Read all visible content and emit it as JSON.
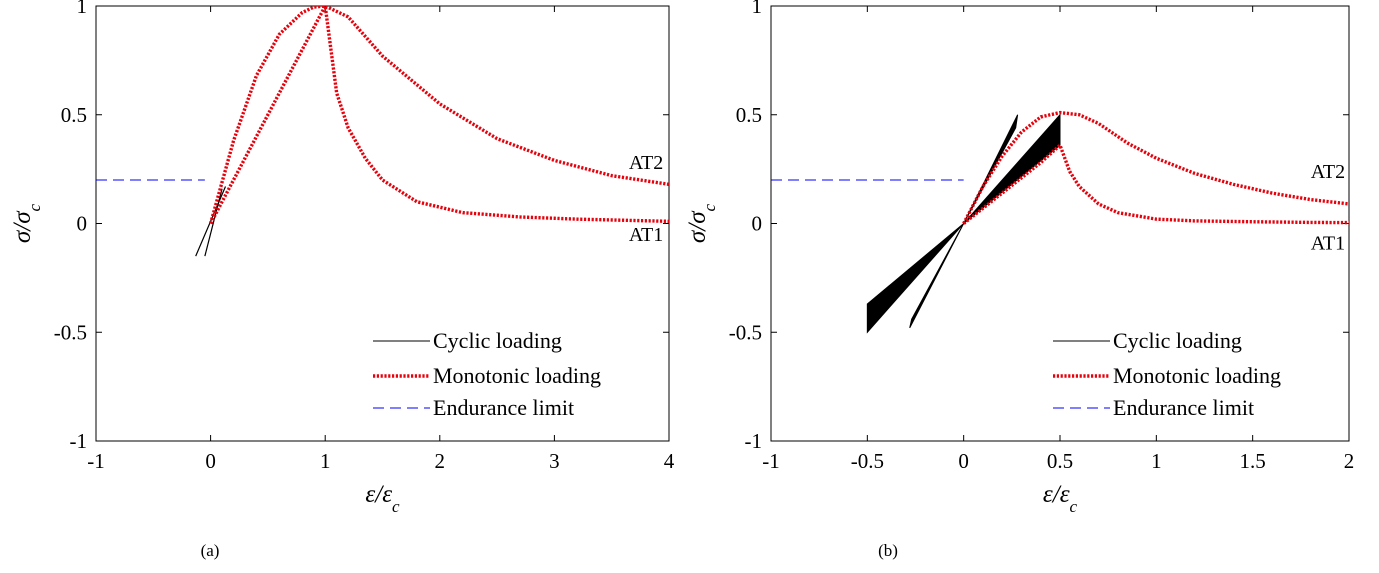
{
  "chart_data": [
    {
      "type": "line",
      "caption": "(a)",
      "xlabel": "ε/ε",
      "xlabel_sub": "c",
      "ylabel": "σ/σ",
      "ylabel_sub": "c",
      "xlim": [
        -1,
        4
      ],
      "ylim": [
        -1,
        1
      ],
      "xticks": [
        -1,
        0,
        1,
        2,
        3,
        4
      ],
      "xtick_labels": [
        "-1",
        "0",
        "1",
        "2",
        "3",
        "4"
      ],
      "yticks": [
        -1,
        -0.5,
        0,
        0.5,
        1
      ],
      "ytick_labels": [
        "-1",
        "-0.5",
        "0",
        "0.5",
        "1"
      ],
      "grid": false,
      "legend_position": "bottom-right",
      "series": [
        {
          "name": "Cyclic loading",
          "style": "solid",
          "color": "#000000",
          "segments": [
            {
              "x": [
                -0.13,
                0.13
              ],
              "y": [
                -0.15,
                0.17
              ]
            },
            {
              "x": [
                -0.05,
                0.1
              ],
              "y": [
                -0.15,
                0.16
              ]
            }
          ]
        },
        {
          "name": "Monotonic loading",
          "style": "dotted",
          "color": "#e8000b",
          "segments": [
            {
              "label": "AT2",
              "x": [
                0,
                0.2,
                0.4,
                0.6,
                0.8,
                0.9,
                1.0,
                1.2,
                1.5,
                2.0,
                2.5,
                3.0,
                3.5,
                4.0
              ],
              "y": [
                0,
                0.38,
                0.68,
                0.87,
                0.97,
                0.995,
                1.0,
                0.95,
                0.77,
                0.55,
                0.39,
                0.29,
                0.22,
                0.18
              ]
            },
            {
              "label": "AT1",
              "x": [
                0,
                0.2,
                0.4,
                0.6,
                0.8,
                1.0,
                1.1,
                1.2,
                1.35,
                1.5,
                1.8,
                2.2,
                2.7,
                3.2,
                4.0
              ],
              "y": [
                0,
                0.2,
                0.4,
                0.6,
                0.8,
                1.0,
                0.6,
                0.44,
                0.3,
                0.2,
                0.1,
                0.05,
                0.03,
                0.02,
                0.01
              ]
            }
          ]
        },
        {
          "name": "Endurance limit",
          "style": "dashed",
          "color": "#0000ff",
          "segments": [
            {
              "x": [
                -1,
                -0.05
              ],
              "y": [
                0.2,
                0.2
              ]
            }
          ]
        }
      ],
      "annotations": [
        {
          "text": "AT2",
          "x": 3.95,
          "y": 0.25
        },
        {
          "text": "AT1",
          "x": 3.95,
          "y": -0.08
        }
      ]
    },
    {
      "type": "line",
      "caption": "(b)",
      "xlabel": "ε/ε",
      "xlabel_sub": "c",
      "ylabel": "σ/σ",
      "ylabel_sub": "c",
      "xlim": [
        -1,
        2
      ],
      "ylim": [
        -1,
        1
      ],
      "xticks": [
        -1,
        -0.5,
        0,
        0.5,
        1,
        1.5,
        2
      ],
      "xtick_labels": [
        "-1",
        "-0.5",
        "0",
        "0.5",
        "1",
        "1.5",
        "2"
      ],
      "yticks": [
        -1,
        -0.5,
        0,
        0.5,
        1
      ],
      "ytick_labels": [
        "-1",
        "-0.5",
        "0",
        "0.5",
        "1"
      ],
      "grid": false,
      "legend_position": "bottom-right",
      "series": [
        {
          "name": "Cyclic loading",
          "style": "filled",
          "color": "#000000",
          "polygons": [
            {
              "x": [
                -0.5,
                0,
                0.5,
                0.5,
                0,
                -0.5
              ],
              "y": [
                -0.5,
                0,
                0.5,
                0.36,
                0,
                -0.37
              ]
            },
            {
              "x": [
                -0.28,
                0,
                0.28,
                0.27,
                0,
                -0.27
              ],
              "y": [
                -0.48,
                0,
                0.5,
                0.44,
                0,
                -0.44
              ]
            }
          ]
        },
        {
          "name": "Monotonic loading",
          "style": "dotted",
          "color": "#e8000b",
          "segments": [
            {
              "label": "AT2",
              "x": [
                0,
                0.1,
                0.2,
                0.3,
                0.4,
                0.5,
                0.6,
                0.7,
                0.85,
                1.0,
                1.2,
                1.4,
                1.6,
                1.8,
                2.0
              ],
              "y": [
                0,
                0.17,
                0.31,
                0.42,
                0.49,
                0.51,
                0.5,
                0.46,
                0.37,
                0.3,
                0.23,
                0.18,
                0.14,
                0.11,
                0.09
              ]
            },
            {
              "label": "AT1",
              "x": [
                0,
                0.1,
                0.2,
                0.3,
                0.4,
                0.5,
                0.55,
                0.6,
                0.7,
                0.8,
                1.0,
                1.2,
                1.5,
                1.8,
                2.0
              ],
              "y": [
                0,
                0.07,
                0.14,
                0.21,
                0.28,
                0.36,
                0.24,
                0.17,
                0.09,
                0.05,
                0.02,
                0.012,
                0.008,
                0.005,
                0.004
              ]
            }
          ]
        },
        {
          "name": "Endurance limit",
          "style": "dashed",
          "color": "#0000ff",
          "segments": [
            {
              "x": [
                -1,
                0
              ],
              "y": [
                0.2,
                0.2
              ]
            }
          ]
        }
      ],
      "annotations": [
        {
          "text": "AT2",
          "x": 1.98,
          "y": 0.21
        },
        {
          "text": "AT1",
          "x": 1.98,
          "y": -0.12
        }
      ]
    }
  ]
}
